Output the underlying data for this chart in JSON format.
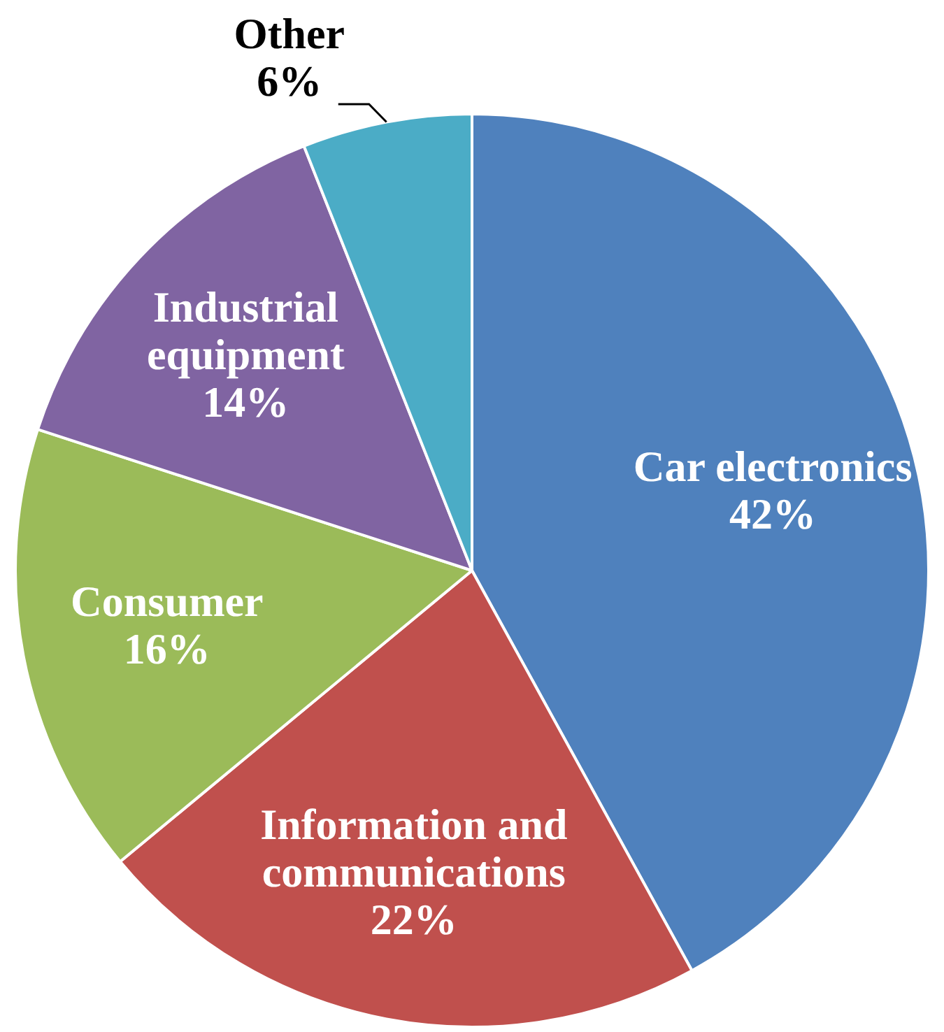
{
  "chart_data": {
    "type": "pie",
    "categories": [
      "Car electronics",
      "Information and communications",
      "Consumer",
      "Industrial equipment",
      "Other"
    ],
    "values": [
      42,
      22,
      16,
      14,
      6
    ],
    "value_labels": [
      "42%",
      "22%",
      "16%",
      "14%",
      "6%"
    ],
    "colors": [
      "#4f81bd",
      "#c0504d",
      "#9bbb59",
      "#8064a2",
      "#4bacc6"
    ],
    "legend": false
  }
}
